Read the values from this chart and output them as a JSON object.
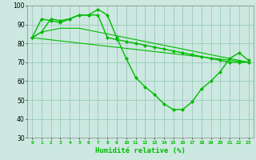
{
  "xlabel": "Humidité relative (%)",
  "xlim": [
    -0.5,
    23.5
  ],
  "ylim": [
    30,
    100
  ],
  "yticks": [
    30,
    40,
    50,
    60,
    70,
    80,
    90,
    100
  ],
  "xtick_labels": [
    "0",
    "1",
    "2",
    "3",
    "4",
    "5",
    "6",
    "7",
    "8",
    "9",
    "10",
    "11",
    "12",
    "13",
    "14",
    "15",
    "16",
    "17",
    "18",
    "19",
    "20",
    "21",
    "22",
    "23"
  ],
  "bg_color": "#cce8e0",
  "grid_color": "#99ccbb",
  "line_color": "#00bb00",
  "lines": [
    {
      "x": [
        0,
        1,
        2,
        3,
        4,
        5,
        6,
        7,
        8,
        9,
        10,
        11,
        12,
        13,
        14,
        15,
        16,
        17,
        18,
        19,
        20,
        21,
        22,
        23
      ],
      "y": [
        83,
        86,
        93,
        92,
        93,
        95,
        95,
        98,
        95,
        83,
        72,
        62,
        57,
        53,
        48,
        45,
        45,
        49,
        56,
        60,
        65,
        72,
        75,
        71
      ],
      "marker": "D",
      "markersize": 2.0,
      "lw": 1.0
    },
    {
      "x": [
        0,
        1,
        2,
        3,
        4,
        5,
        6,
        7,
        8,
        9,
        10,
        11,
        12,
        13,
        14,
        15,
        16,
        17,
        18,
        19,
        20,
        21,
        22,
        23
      ],
      "y": [
        83,
        93,
        92,
        91,
        93,
        95,
        95,
        95,
        83,
        82,
        81,
        80,
        79,
        78,
        77,
        76,
        75,
        74,
        73,
        72,
        71,
        70,
        70,
        70
      ],
      "marker": "D",
      "markersize": 2.0,
      "lw": 1.0
    },
    {
      "x": [
        0,
        1,
        2,
        3,
        4,
        5,
        6,
        7,
        8,
        9,
        10,
        11,
        12,
        13,
        14,
        15,
        16,
        17,
        18,
        19,
        20,
        21,
        22,
        23
      ],
      "y": [
        83,
        86,
        87,
        88,
        88,
        88,
        87,
        86,
        85,
        84,
        83,
        82,
        81,
        80,
        79,
        78,
        77,
        76,
        75,
        74,
        73,
        72,
        71,
        70
      ],
      "marker": null,
      "markersize": 0,
      "lw": 0.8
    },
    {
      "x": [
        0,
        23
      ],
      "y": [
        83,
        70
      ],
      "marker": null,
      "markersize": 0,
      "lw": 0.8
    }
  ]
}
